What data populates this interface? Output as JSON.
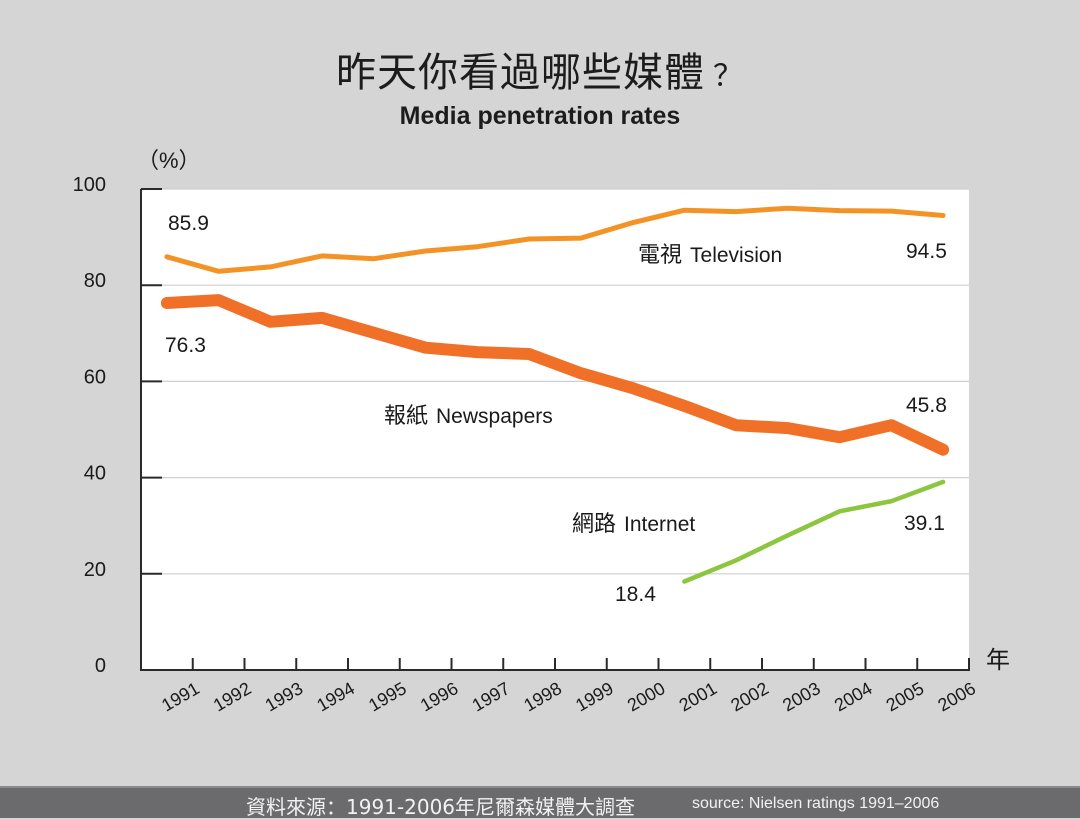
{
  "header": {
    "title": "昨天你看過哪些媒體",
    "title_suffix": "？",
    "subtitle": "Media penetration rates"
  },
  "footer": {
    "source_zh": "資料來源：1991-2006年尼爾森媒體大調查",
    "source_en": "source: Nielsen ratings 1991–2006"
  },
  "chart_data": {
    "type": "line",
    "title": "Media penetration rates",
    "ylabel": "（%）",
    "xlabel": "年",
    "ylim": [
      0,
      100
    ],
    "yticks": [
      "0",
      "20",
      "40",
      "60",
      "80",
      "100"
    ],
    "x": [
      "1991",
      "1992",
      "1993",
      "1994",
      "1995",
      "1996",
      "1997",
      "1998",
      "1999",
      "2000",
      "2001",
      "2002",
      "2003",
      "2004",
      "2005",
      "2006"
    ],
    "grid": true,
    "series": [
      {
        "name": "電視 Television",
        "name_zh": "電視",
        "name_en": "Television",
        "color": "#f39325",
        "values": [
          85.9,
          82.9,
          83.8,
          86.1,
          85.5,
          87.1,
          88.0,
          89.6,
          89.8,
          93.0,
          95.6,
          95.3,
          96.0,
          95.5,
          95.4,
          94.5
        ],
        "start_label": "85.9",
        "end_label": "94.5"
      },
      {
        "name": "報紙 Newspapers",
        "name_zh": "報紙",
        "name_en": "Newspapers",
        "color": "#f07027",
        "values": [
          76.3,
          76.9,
          72.4,
          73.2,
          70.1,
          67.0,
          66.1,
          65.7,
          61.7,
          58.6,
          54.9,
          50.9,
          50.3,
          48.4,
          50.9,
          45.8
        ],
        "start_label": "76.3",
        "end_label": "45.8"
      },
      {
        "name": "網路 Internet",
        "name_zh": "網路",
        "name_en": "Internet",
        "color": "#8cc63f",
        "values": [
          null,
          null,
          null,
          null,
          null,
          null,
          null,
          null,
          null,
          null,
          18.4,
          22.8,
          28.0,
          33.0,
          35.1,
          39.1
        ],
        "start_label": "18.4",
        "end_label": "39.1"
      }
    ]
  }
}
